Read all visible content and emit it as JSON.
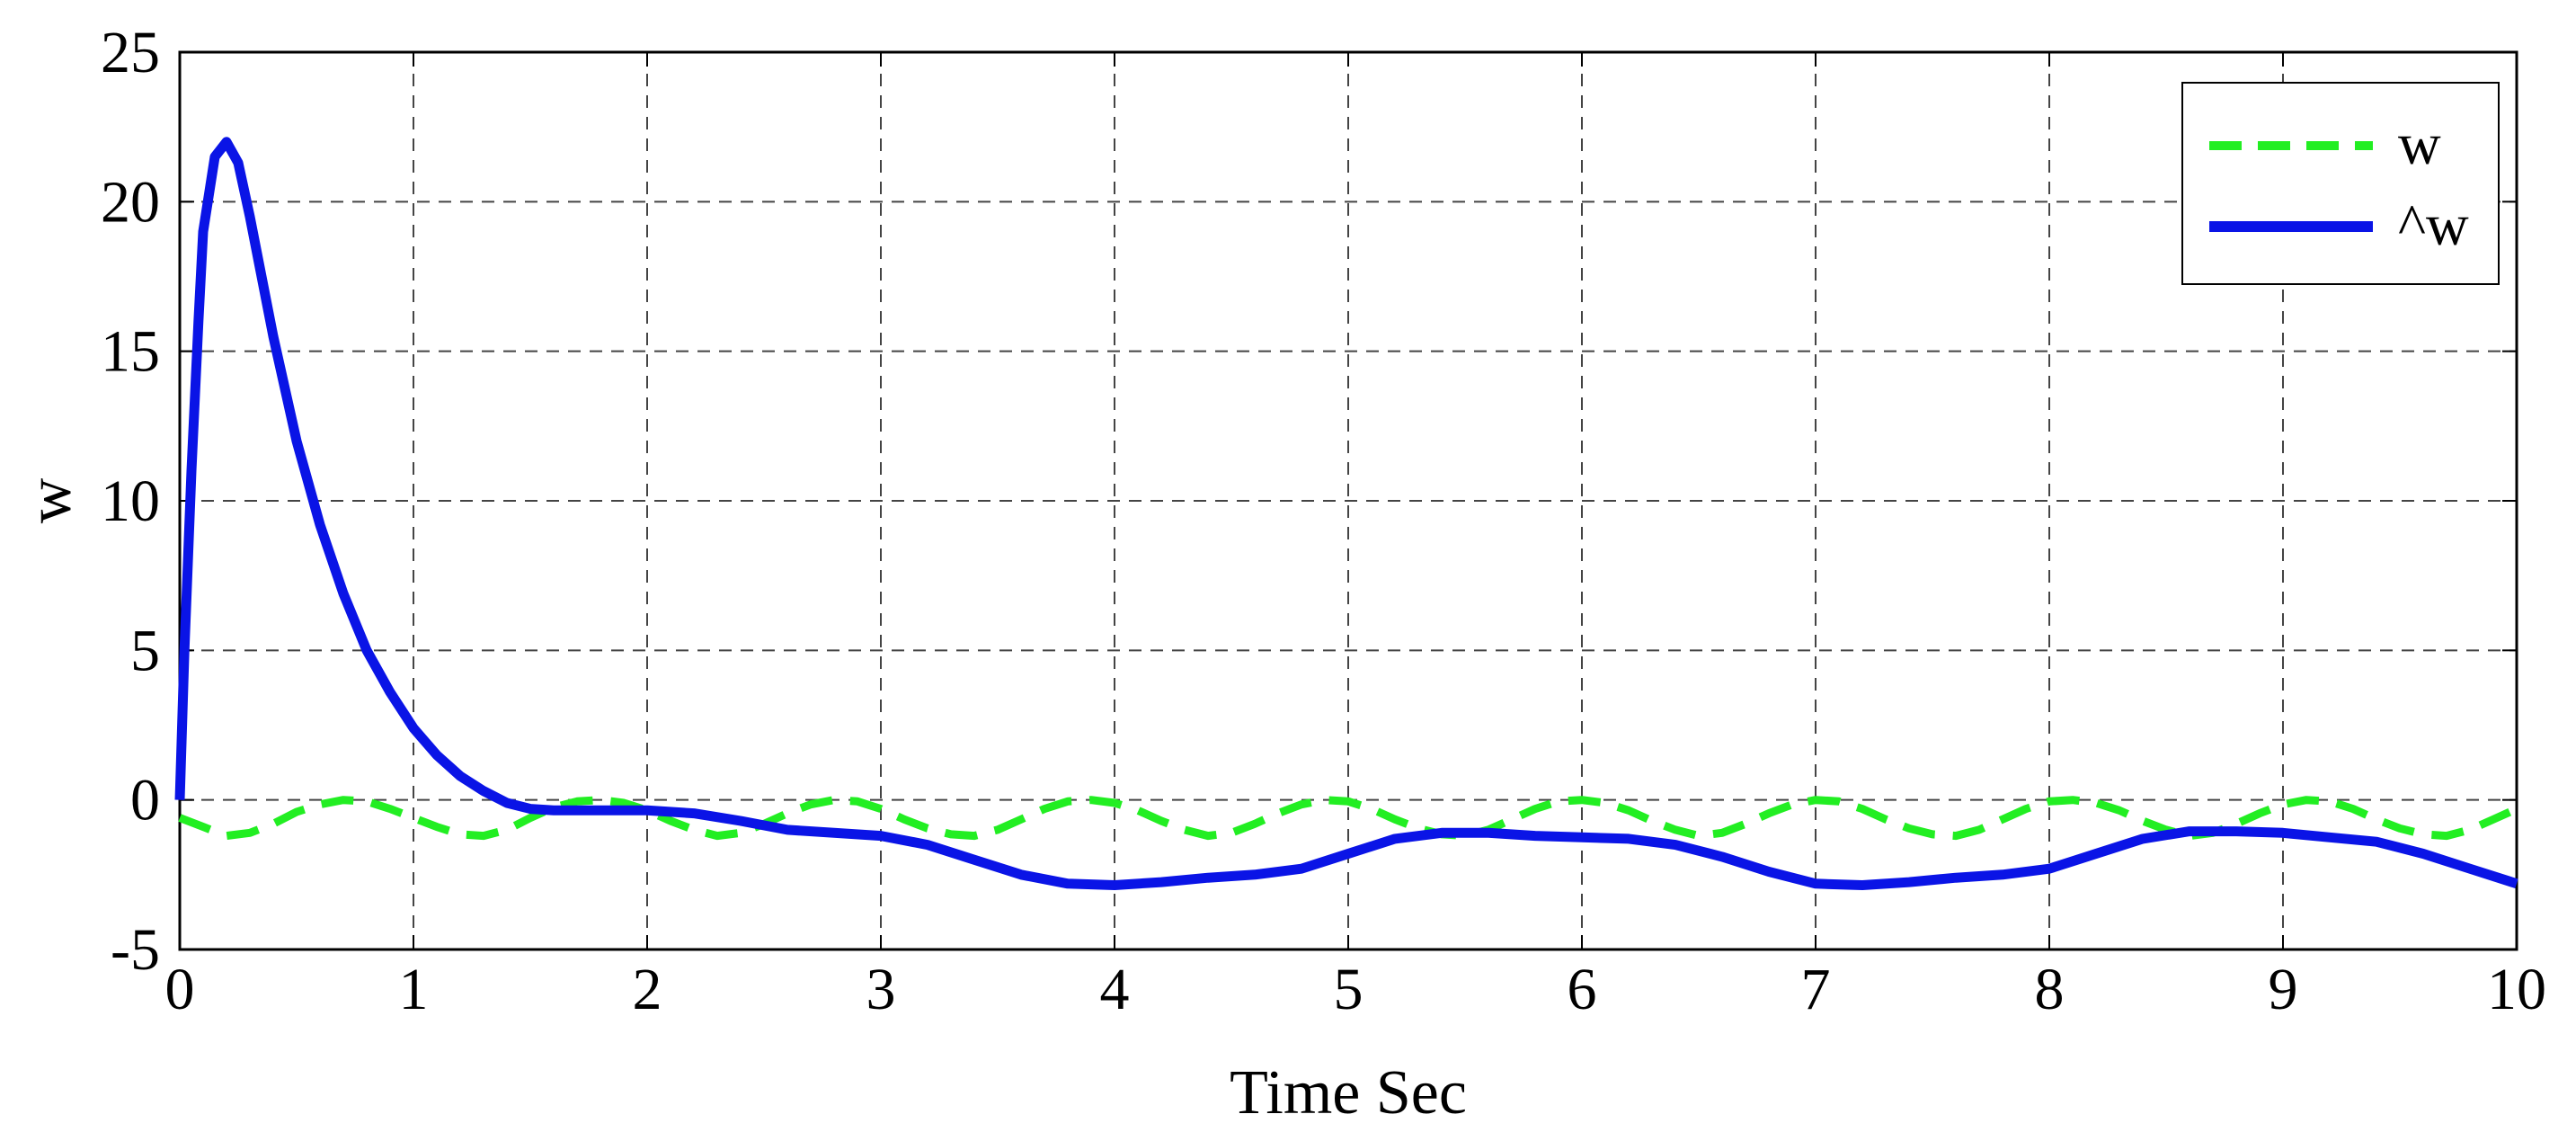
{
  "chart_data": {
    "type": "line",
    "xlabel": "Time Sec",
    "ylabel": "w",
    "xlim": [
      0,
      10
    ],
    "ylim": [
      -5,
      25
    ],
    "xticks": [
      0,
      1,
      2,
      3,
      4,
      5,
      6,
      7,
      8,
      9,
      10
    ],
    "yticks": [
      -5,
      0,
      5,
      10,
      15,
      20,
      25
    ],
    "xtick_labels": [
      "0",
      "1",
      "2",
      "3",
      "4",
      "5",
      "6",
      "7",
      "8",
      "9",
      "10"
    ],
    "ytick_labels": [
      "-5",
      "0",
      "5",
      "10",
      "15",
      "20",
      "25"
    ],
    "grid": true,
    "legend_position": "top-right",
    "series": [
      {
        "name": "w",
        "color": "#22ee22",
        "style": "dashed",
        "x": [
          0,
          0.1,
          0.2,
          0.3,
          0.4,
          0.5,
          0.6,
          0.7,
          0.8,
          0.9,
          1.0,
          1.1,
          1.2,
          1.3,
          1.4,
          1.5,
          1.6,
          1.7,
          1.8,
          1.9,
          2.0,
          2.1,
          2.2,
          2.3,
          2.4,
          2.5,
          2.6,
          2.7,
          2.8,
          2.9,
          3.0,
          3.1,
          3.2,
          3.3,
          3.4,
          3.5,
          3.6,
          3.7,
          3.8,
          3.9,
          4.0,
          4.1,
          4.2,
          4.3,
          4.4,
          4.5,
          4.6,
          4.7,
          4.8,
          4.9,
          5.0,
          5.1,
          5.2,
          5.3,
          5.4,
          5.5,
          5.6,
          5.7,
          5.8,
          5.9,
          6.0,
          6.1,
          6.2,
          6.3,
          6.4,
          6.5,
          6.6,
          6.7,
          6.8,
          6.9,
          7.0,
          7.1,
          7.2,
          7.3,
          7.4,
          7.5,
          7.6,
          7.7,
          7.8,
          7.9,
          8.0,
          8.1,
          8.2,
          8.3,
          8.4,
          8.5,
          8.6,
          8.7,
          8.8,
          8.9,
          9.0,
          9.1,
          9.2,
          9.3,
          9.4,
          9.5,
          9.6,
          9.7,
          9.8,
          9.9,
          10.0
        ],
        "y": [
          -0.6,
          -0.9,
          -1.2,
          -1.1,
          -0.8,
          -0.4,
          -0.15,
          0,
          -0.05,
          -0.3,
          -0.6,
          -0.9,
          -1.15,
          -1.2,
          -1.0,
          -0.6,
          -0.25,
          -0.05,
          0,
          -0.1,
          -0.35,
          -0.7,
          -1.0,
          -1.2,
          -1.1,
          -0.8,
          -0.45,
          -0.15,
          0,
          -0.05,
          -0.3,
          -0.65,
          -0.95,
          -1.15,
          -1.2,
          -1.0,
          -0.65,
          -0.3,
          -0.05,
          0,
          -0.1,
          -0.35,
          -0.7,
          -1.0,
          -1.2,
          -1.1,
          -0.8,
          -0.45,
          -0.15,
          0,
          -0.05,
          -0.3,
          -0.65,
          -0.95,
          -1.15,
          -1.2,
          -1.0,
          -0.65,
          -0.3,
          -0.05,
          0,
          -0.1,
          -0.35,
          -0.7,
          -1.0,
          -1.2,
          -1.1,
          -0.8,
          -0.45,
          -0.15,
          0,
          -0.05,
          -0.3,
          -0.65,
          -0.95,
          -1.15,
          -1.2,
          -1.0,
          -0.65,
          -0.3,
          -0.05,
          0,
          -0.1,
          -0.35,
          -0.7,
          -1.0,
          -1.2,
          -1.1,
          -0.8,
          -0.45,
          -0.15,
          0,
          -0.05,
          -0.3,
          -0.65,
          -0.95,
          -1.15,
          -1.2,
          -1.0,
          -0.65,
          -0.3
        ]
      },
      {
        "name": "^w",
        "color": "#0a14e6",
        "style": "solid",
        "x": [
          0,
          0.02,
          0.05,
          0.08,
          0.1,
          0.15,
          0.2,
          0.25,
          0.3,
          0.4,
          0.5,
          0.6,
          0.7,
          0.8,
          0.9,
          1.0,
          1.1,
          1.2,
          1.3,
          1.4,
          1.5,
          1.6,
          1.7,
          1.8,
          1.9,
          2.0,
          2.2,
          2.4,
          2.6,
          2.8,
          3.0,
          3.2,
          3.4,
          3.6,
          3.8,
          4.0,
          4.2,
          4.4,
          4.6,
          4.8,
          5.0,
          5.2,
          5.4,
          5.6,
          5.8,
          6.0,
          6.2,
          6.4,
          6.6,
          6.8,
          7.0,
          7.2,
          7.4,
          7.6,
          7.8,
          8.0,
          8.2,
          8.4,
          8.6,
          8.8,
          9.0,
          9.2,
          9.4,
          9.6,
          9.8,
          10.0
        ],
        "y": [
          0,
          5,
          11,
          16,
          19,
          21.5,
          22,
          21.3,
          19.5,
          15.5,
          12,
          9.2,
          6.9,
          5.0,
          3.6,
          2.4,
          1.5,
          0.8,
          0.3,
          -0.1,
          -0.3,
          -0.35,
          -0.35,
          -0.35,
          -0.35,
          -0.35,
          -0.45,
          -0.7,
          -1.0,
          -1.1,
          -1.2,
          -1.5,
          -2.0,
          -2.5,
          -2.8,
          -2.85,
          -2.75,
          -2.6,
          -2.5,
          -2.3,
          -1.8,
          -1.3,
          -1.1,
          -1.1,
          -1.2,
          -1.25,
          -1.3,
          -1.5,
          -1.9,
          -2.4,
          -2.8,
          -2.85,
          -2.75,
          -2.6,
          -2.5,
          -2.3,
          -1.8,
          -1.3,
          -1.05,
          -1.05,
          -1.1,
          -1.25,
          -1.4,
          -1.8,
          -2.3,
          -2.8
        ]
      }
    ]
  }
}
